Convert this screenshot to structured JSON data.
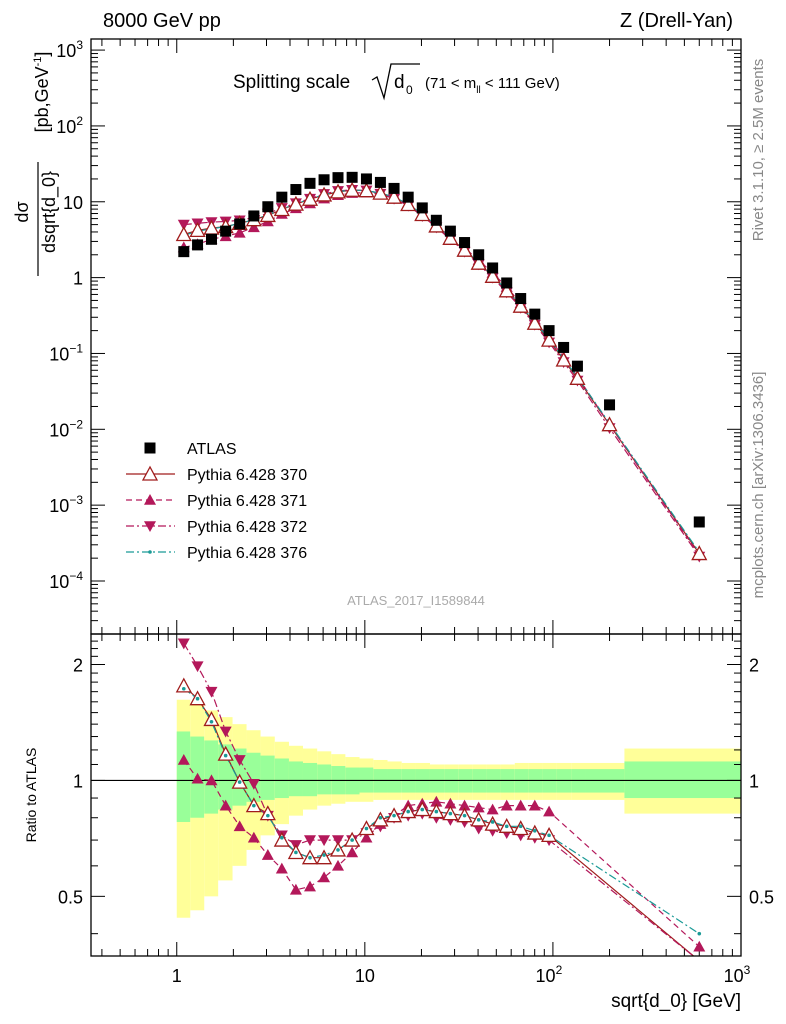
{
  "header": {
    "left": "8000 GeV pp",
    "right": "Z (Drell-Yan)"
  },
  "side_labels": {
    "rivet": "Rivet 3.1.10, ≥ 2.5M events",
    "mcplots": "mcplots.cern.ch [arXiv:1306.3436]"
  },
  "title": {
    "main": "Splitting scale",
    "sqrt_arg": "d",
    "sqrt_sub": "0",
    "cut_prefix": "(71 < m",
    "cut_sub": "ll",
    "cut_suffix": " < 111 GeV)"
  },
  "watermark": "ATLAS_2017_I1589844",
  "ylabel_main": {
    "num": "dσ",
    "den": "dsqrt{d_0}",
    "units": "[pb,GeV",
    "units_sup": "-1",
    "units_end": "]"
  },
  "ylabel_ratio": "Ratio to ATLAS",
  "xlabel": "sqrt{d_0} [GeV]",
  "ticks": {
    "x": [
      {
        "value": 1,
        "label": "1"
      },
      {
        "value": 10,
        "label": "10"
      },
      {
        "value": 100,
        "base": "10",
        "exp": "2"
      },
      {
        "value": 1000,
        "base": "10",
        "exp": "3"
      }
    ],
    "y_main": [
      {
        "value": 1000,
        "base": "10",
        "exp": "3"
      },
      {
        "value": 100,
        "base": "10",
        "exp": "2"
      },
      {
        "value": 10,
        "label": "10"
      },
      {
        "value": 1,
        "label": "1"
      },
      {
        "value": 0.1,
        "base": "10",
        "exp": "−1"
      },
      {
        "value": 0.01,
        "base": "10",
        "exp": "−2"
      },
      {
        "value": 0.001,
        "base": "10",
        "exp": "−3"
      },
      {
        "value": 0.0001,
        "base": "10",
        "exp": "−4"
      }
    ],
    "y_ratio": [
      {
        "value": 2,
        "label": "2"
      },
      {
        "value": 1,
        "label": "1"
      },
      {
        "value": 0.5,
        "label": "0.5"
      }
    ]
  },
  "legend": [
    {
      "label": "ATLAS",
      "color": "#000000",
      "marker": "square",
      "dash": "none"
    },
    {
      "label": "Pythia 6.428 370",
      "color": "#a01c1c",
      "marker": "triangle-up-open",
      "dash": "solid"
    },
    {
      "label": "Pythia 6.428 371",
      "color": "#b3185a",
      "marker": "triangle-up",
      "dash": "dashed"
    },
    {
      "label": "Pythia 6.428 372",
      "color": "#b3185a",
      "marker": "triangle-down",
      "dash": "dashdot"
    },
    {
      "label": "Pythia 6.428 376",
      "color": "#1a9a96",
      "marker": "dot",
      "dash": "dashdot"
    }
  ],
  "colors": {
    "band_outer": "#ffff99",
    "band_inner": "#99ff99"
  },
  "chart_data": {
    "type": "line",
    "x_scale": "log",
    "y_scale": "log",
    "xlim": [
      0.35,
      1000
    ],
    "ylim_main": [
      2e-05,
      1400
    ],
    "ylim_ratio": [
      0.35,
      2.4
    ],
    "legend_position": "bottom-left",
    "x": [
      1.09,
      1.29,
      1.53,
      1.82,
      2.16,
      2.57,
      3.05,
      3.62,
      4.3,
      5.11,
      6.07,
      7.2,
      8.56,
      10.2,
      12.1,
      14.3,
      17.0,
      20.2,
      24.0,
      28.5,
      33.9,
      40.3,
      47.8,
      56.8,
      67.4,
      80.1,
      95.4,
      114,
      135,
      200,
      600
    ],
    "series": [
      {
        "name": "ATLAS",
        "y": [
          2.2,
          2.7,
          3.2,
          4.1,
          5.1,
          6.5,
          8.6,
          11.5,
          14.5,
          17.5,
          19.5,
          20.8,
          21.0,
          20.0,
          18.0,
          15.0,
          11.5,
          8.3,
          5.7,
          4.1,
          2.9,
          2.0,
          1.34,
          0.85,
          0.53,
          0.33,
          0.2,
          0.12,
          0.068,
          0.021,
          0.0006
        ]
      },
      {
        "name": "Pythia 6.428 370",
        "y": [
          3.7,
          4.2,
          4.5,
          4.7,
          5.2,
          5.8,
          6.6,
          7.9,
          9.3,
          10.8,
          12.3,
          13.5,
          14.2,
          14.0,
          13.0,
          11.5,
          9.2,
          6.8,
          4.8,
          3.3,
          2.3,
          1.55,
          1.04,
          0.67,
          0.42,
          0.25,
          0.15,
          0.082,
          0.047,
          0.0115,
          0.00023
        ]
      },
      {
        "name": "Pythia 6.428 371",
        "y": [
          2.5,
          2.75,
          3.2,
          3.5,
          3.9,
          4.6,
          5.5,
          6.9,
          8.2,
          9.5,
          11.0,
          12.2,
          13.0,
          13.2,
          12.6,
          11.0,
          9.0,
          6.8,
          4.9,
          3.45,
          2.45,
          1.7,
          1.15,
          0.75,
          0.46,
          0.28,
          0.16,
          0.089,
          0.05,
          0.0115,
          0.00022
        ]
      },
      {
        "name": "Pythia 6.428 372",
        "y": [
          5.0,
          5.2,
          5.4,
          5.5,
          5.7,
          6.2,
          7.0,
          8.3,
          9.6,
          11.0,
          12.7,
          13.9,
          14.4,
          14.1,
          12.8,
          11.0,
          8.9,
          6.5,
          4.6,
          3.2,
          2.2,
          1.5,
          1.0,
          0.64,
          0.4,
          0.24,
          0.14,
          0.077,
          0.044,
          0.0104,
          0.00021
        ]
      },
      {
        "name": "Pythia 6.428 376",
        "y": [
          3.6,
          4.1,
          4.4,
          4.7,
          5.2,
          5.8,
          6.7,
          8.0,
          9.4,
          10.9,
          12.4,
          13.6,
          14.3,
          14.0,
          13.0,
          11.6,
          9.3,
          6.9,
          4.9,
          3.35,
          2.35,
          1.58,
          1.06,
          0.68,
          0.43,
          0.26,
          0.155,
          0.085,
          0.049,
          0.012,
          0.00024
        ]
      }
    ],
    "ratio_series": [
      {
        "name": "Pythia 6.428 370",
        "y": [
          1.76,
          1.63,
          1.44,
          1.17,
          0.99,
          0.86,
          0.82,
          0.7,
          0.65,
          0.63,
          0.63,
          0.66,
          0.7,
          0.75,
          0.79,
          0.81,
          0.83,
          0.84,
          0.83,
          0.82,
          0.81,
          0.79,
          0.77,
          0.76,
          0.75,
          0.73,
          0.72,
          0.34
        ]
      },
      {
        "name": "Pythia 6.428 371",
        "y": [
          1.13,
          1.01,
          1.0,
          0.86,
          0.76,
          0.71,
          0.64,
          0.59,
          0.52,
          0.53,
          0.56,
          0.6,
          0.65,
          0.71,
          0.77,
          0.81,
          0.86,
          0.87,
          0.88,
          0.87,
          0.86,
          0.85,
          0.84,
          0.86,
          0.86,
          0.86,
          0.83,
          0.37
        ]
      },
      {
        "name": "Pythia 6.428 372",
        "y": [
          2.27,
          1.98,
          1.7,
          1.34,
          1.13,
          0.98,
          0.81,
          0.72,
          0.68,
          0.7,
          0.7,
          0.7,
          0.7,
          0.73,
          0.76,
          0.8,
          0.81,
          0.82,
          0.8,
          0.79,
          0.78,
          0.75,
          0.74,
          0.73,
          0.72,
          0.71,
          0.7,
          0.34
        ]
      },
      {
        "name": "Pythia 6.428 376",
        "y": [
          1.73,
          1.63,
          1.42,
          1.16,
          0.99,
          0.86,
          0.81,
          0.71,
          0.65,
          0.63,
          0.64,
          0.66,
          0.7,
          0.75,
          0.8,
          0.81,
          0.83,
          0.84,
          0.83,
          0.82,
          0.81,
          0.79,
          0.78,
          0.76,
          0.76,
          0.74,
          0.72,
          0.4
        ]
      }
    ],
    "ratio_x": [
      1.09,
      1.29,
      1.53,
      1.82,
      2.16,
      2.57,
      3.05,
      3.62,
      4.3,
      5.11,
      6.07,
      7.2,
      8.56,
      10.2,
      12.1,
      14.3,
      17.0,
      20.2,
      24.0,
      28.5,
      33.9,
      40.3,
      47.8,
      56.8,
      67.4,
      80.1,
      95.4,
      600
    ],
    "uncertainty_bins": {
      "edges": [
        1.0,
        1.18,
        1.4,
        1.66,
        1.98,
        2.35,
        2.79,
        3.32,
        3.95,
        4.69,
        5.58,
        6.63,
        7.88,
        9.37,
        11.1,
        13.2,
        15.7,
        18.7,
        22.2,
        26.4,
        31.4,
        37.3,
        44.4,
        52.7,
        62.7,
        74.5,
        88.5,
        105,
        125,
        149,
        240,
        1000
      ],
      "outer_lo": [
        0.44,
        0.46,
        0.5,
        0.55,
        0.6,
        0.66,
        0.72,
        0.77,
        0.81,
        0.84,
        0.86,
        0.87,
        0.88,
        0.88,
        0.89,
        0.89,
        0.89,
        0.89,
        0.89,
        0.89,
        0.89,
        0.89,
        0.89,
        0.89,
        0.89,
        0.89,
        0.89,
        0.89,
        0.89,
        0.89,
        0.82
      ],
      "outer_hi": [
        1.62,
        1.58,
        1.52,
        1.46,
        1.4,
        1.35,
        1.3,
        1.26,
        1.23,
        1.21,
        1.19,
        1.17,
        1.15,
        1.14,
        1.13,
        1.12,
        1.11,
        1.11,
        1.1,
        1.1,
        1.1,
        1.1,
        1.1,
        1.1,
        1.11,
        1.11,
        1.11,
        1.11,
        1.11,
        1.11,
        1.21
      ],
      "inner_lo": [
        0.78,
        0.8,
        0.82,
        0.84,
        0.86,
        0.88,
        0.89,
        0.9,
        0.91,
        0.91,
        0.92,
        0.92,
        0.92,
        0.93,
        0.93,
        0.93,
        0.93,
        0.93,
        0.93,
        0.93,
        0.93,
        0.93,
        0.93,
        0.93,
        0.93,
        0.93,
        0.93,
        0.93,
        0.93,
        0.93,
        0.9
      ],
      "inner_hi": [
        1.34,
        1.3,
        1.27,
        1.24,
        1.21,
        1.18,
        1.16,
        1.14,
        1.12,
        1.11,
        1.1,
        1.09,
        1.08,
        1.08,
        1.07,
        1.07,
        1.07,
        1.07,
        1.07,
        1.07,
        1.07,
        1.07,
        1.07,
        1.07,
        1.07,
        1.07,
        1.07,
        1.07,
        1.07,
        1.07,
        1.12
      ]
    }
  }
}
